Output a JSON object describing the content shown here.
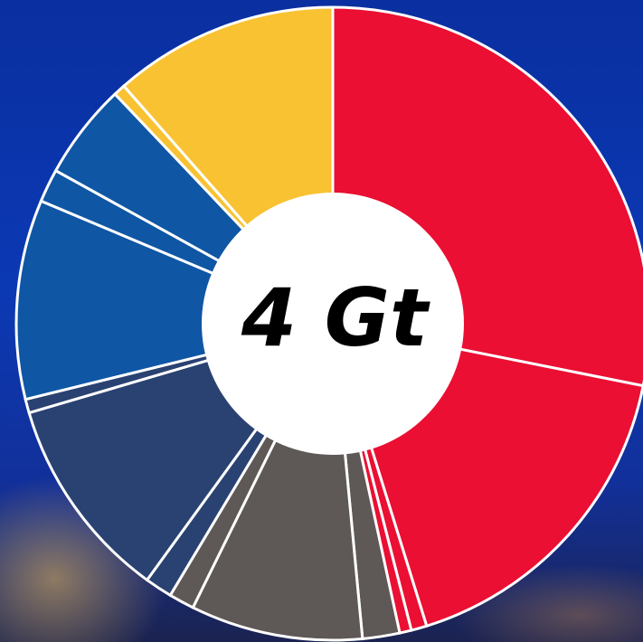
{
  "chart_data": {
    "type": "donut",
    "center_label": "4 Gt",
    "values": [
      28.2,
      17.1,
      0.8,
      0.6,
      1.9,
      8.8,
      1.3,
      1.4,
      10.5,
      0.7,
      10.2,
      1.7,
      4.9,
      0.6,
      11.5
    ],
    "colors": [
      "#ea0f33",
      "#ea0f33",
      "#ea0f33",
      "#ea0f33",
      "#5e5856",
      "#5e5856",
      "#5e5856",
      "#2a4272",
      "#2a4272",
      "#2a4272",
      "#0f56a4",
      "#0f56a4",
      "#0f56a4",
      "#f8c233",
      "#f8c233"
    ]
  }
}
